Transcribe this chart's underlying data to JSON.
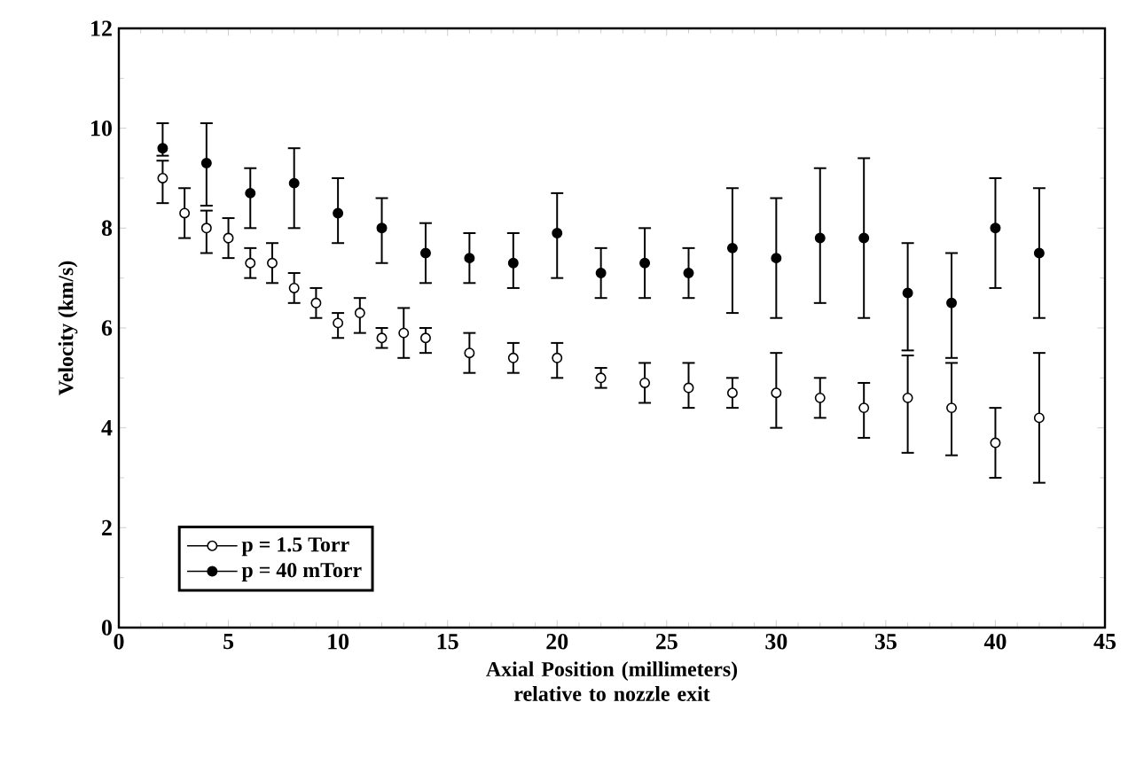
{
  "chart_data": {
    "type": "scatter",
    "xlabel": "Axial Position (millimeters) relative to nozzle exit",
    "ylabel": "Velocity (km/s)",
    "xlim": [
      0,
      45
    ],
    "xticks": [
      0,
      5,
      10,
      15,
      20,
      25,
      30,
      35,
      40,
      45
    ],
    "ylim": [
      0,
      12
    ],
    "yticks": [
      0,
      2,
      4,
      6,
      8,
      10,
      12
    ],
    "grid": false,
    "legend": "bottom left",
    "marker": "circle",
    "series": [
      {
        "name": "p = 1.5 Torr",
        "color": "#000000",
        "x": [
          2,
          3,
          4,
          5,
          6,
          7,
          8,
          9,
          10,
          11,
          12,
          13,
          14,
          16,
          18,
          20,
          22,
          24,
          26,
          28,
          30,
          32,
          34,
          36,
          38,
          40,
          42
        ],
        "values": [
          9.0,
          8.3,
          8.0,
          7.8,
          7.3,
          7.3,
          6.8,
          6.5,
          6.1,
          6.3,
          5.8,
          5.9,
          5.8,
          5.5,
          5.4,
          5.4,
          5.0,
          4.9,
          4.8,
          4.7,
          4.7,
          4.6,
          4.4,
          4.6,
          4.4,
          3.7,
          4.2
        ],
        "errors": [
          [
            8.5,
            9.35
          ],
          [
            7.8,
            8.8
          ],
          [
            7.5,
            8.35
          ],
          [
            7.4,
            8.2
          ],
          [
            7.0,
            7.6
          ],
          [
            6.9,
            7.7
          ],
          [
            6.5,
            7.1
          ],
          [
            6.2,
            6.8
          ],
          [
            5.8,
            6.3
          ],
          [
            5.9,
            6.6
          ],
          [
            5.6,
            6.0
          ],
          [
            5.4,
            6.4
          ],
          [
            5.5,
            6.0
          ],
          [
            5.1,
            5.9
          ],
          [
            5.1,
            5.7
          ],
          [
            5.0,
            5.7
          ],
          [
            4.8,
            5.2
          ],
          [
            4.5,
            5.3
          ],
          [
            4.4,
            5.3
          ],
          [
            4.4,
            5.0
          ],
          [
            4.0,
            5.5
          ],
          [
            4.2,
            5.0
          ],
          [
            3.8,
            4.9
          ],
          [
            3.5,
            5.45
          ],
          [
            3.45,
            5.3
          ],
          [
            3.0,
            4.4
          ],
          [
            2.9,
            5.5
          ]
        ]
      },
      {
        "name": "p = 40 mTorr",
        "color": "#000000",
        "x": [
          2,
          4,
          6,
          8,
          10,
          12,
          14,
          16,
          18,
          20,
          22,
          24,
          26,
          28,
          30,
          32,
          34,
          36,
          38,
          40,
          42
        ],
        "values": [
          9.6,
          9.3,
          8.7,
          8.9,
          8.3,
          8.0,
          7.5,
          7.4,
          7.3,
          7.9,
          7.1,
          7.3,
          7.1,
          7.6,
          7.4,
          7.8,
          7.8,
          6.7,
          6.5,
          8.0,
          7.5
        ],
        "errors": [
          [
            9.45,
            10.1
          ],
          [
            8.45,
            10.1
          ],
          [
            8.0,
            9.2
          ],
          [
            8.0,
            9.6
          ],
          [
            7.7,
            9.0
          ],
          [
            7.3,
            8.6
          ],
          [
            6.9,
            8.1
          ],
          [
            6.9,
            7.9
          ],
          [
            6.8,
            7.9
          ],
          [
            7.0,
            8.7
          ],
          [
            6.6,
            7.6
          ],
          [
            6.6,
            8.0
          ],
          [
            6.6,
            7.6
          ],
          [
            6.3,
            8.8
          ],
          [
            6.2,
            8.6
          ],
          [
            6.5,
            9.2
          ],
          [
            6.2,
            9.4
          ],
          [
            5.55,
            7.7
          ],
          [
            5.4,
            7.5
          ],
          [
            6.8,
            9.0
          ],
          [
            6.2,
            8.8
          ]
        ]
      }
    ]
  }
}
